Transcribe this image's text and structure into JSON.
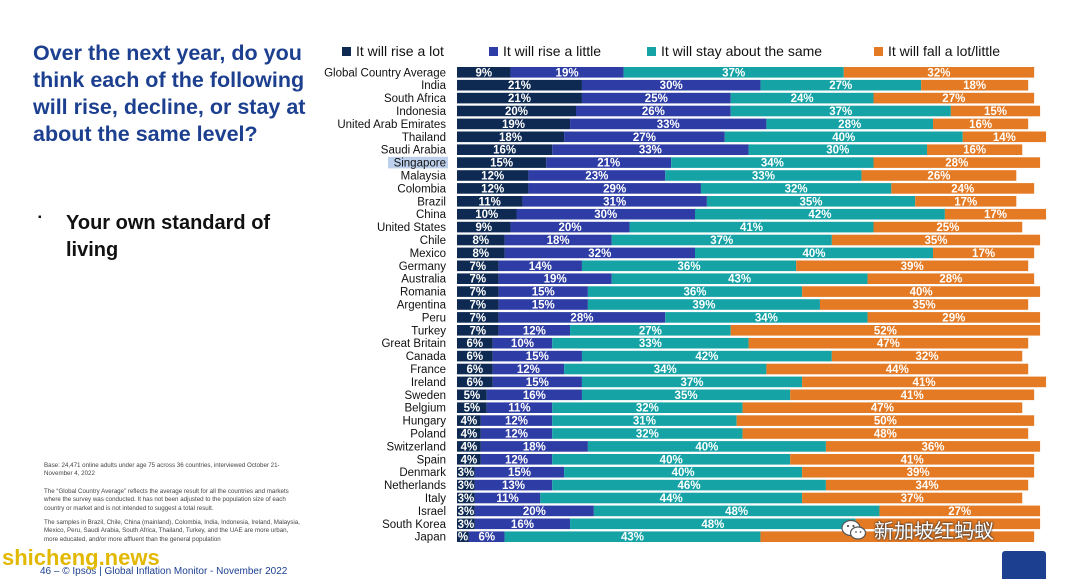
{
  "left_panel": {
    "question": "Over the next year, do you think each of the following will rise, decline, or stay at about the same level?",
    "bullet_text": "Your own standard of living",
    "notes": [
      "Base: 24,471 online adults under age 75 across 36 countries, interviewed October 21- November 4, 2022",
      "The “Global Country Average” reflects the average result for all the countries and markets where the survey was conducted. It has not been adjusted to the population size of each country or market and is not intended to suggest a total result.",
      "The samples in Brazil, Chile, China (mainland), Colombia, India, Indonesia, Ireland, Malaysia, Mexico, Peru, Saudi Arabia, South Africa, Thailand, Turkey, and the UAE are more urban, more educated, and/or more affluent than the general population"
    ]
  },
  "footer": {
    "text": "46 –   © Ipsos | Global Inflation Monitor - November 2022"
  },
  "watermarks": {
    "left": "shicheng.news",
    "right": "新加坡红蚂蚁"
  },
  "colors": {
    "rise_lot": "#0e2a52",
    "rise_little": "#2e3da5",
    "stay": "#16a3a6",
    "fall": "#e47a23",
    "title": "#1c3f8f"
  },
  "chart_data": {
    "type": "bar",
    "orientation": "horizontal",
    "stacked": true,
    "series": [
      {
        "name": "It will rise a lot",
        "color": "#0e2a52"
      },
      {
        "name": "It will rise a little",
        "color": "#2e3da5"
      },
      {
        "name": "It will stay about the same",
        "color": "#16a3a6"
      },
      {
        "name": "It will fall a lot/little",
        "color": "#e47a23"
      }
    ],
    "xlim": [
      0,
      100
    ],
    "highlight": "Singapore",
    "rows": [
      {
        "label": "Global Country Average",
        "v": [
          9,
          19,
          37,
          32
        ],
        "t": [
          "9%",
          "19%",
          "37%",
          "32%"
        ]
      },
      {
        "label": "India",
        "v": [
          21,
          30,
          27,
          18
        ],
        "t": [
          "21%",
          "30%",
          "27%",
          "18%"
        ]
      },
      {
        "label": "South Africa",
        "v": [
          21,
          25,
          24,
          27
        ],
        "t": [
          "21%",
          "25%",
          "24%",
          "27%"
        ]
      },
      {
        "label": "Indonesia",
        "v": [
          20,
          26,
          37,
          15
        ],
        "t": [
          "20%",
          "26%",
          "37%",
          "15%"
        ]
      },
      {
        "label": "United Arab Emirates",
        "v": [
          19,
          33,
          28,
          16
        ],
        "t": [
          "19%",
          "33%",
          "28%",
          "16%"
        ]
      },
      {
        "label": "Thailand",
        "v": [
          18,
          27,
          40,
          14
        ],
        "t": [
          "18%",
          "27%",
          "40%",
          "14%"
        ]
      },
      {
        "label": "Saudi Arabia",
        "v": [
          16,
          33,
          30,
          16
        ],
        "t": [
          "16%",
          "33%",
          "30%",
          "16%"
        ]
      },
      {
        "label": "Singapore",
        "v": [
          15,
          21,
          34,
          28
        ],
        "t": [
          "15%",
          "21%",
          "34%",
          "28%"
        ]
      },
      {
        "label": "Malaysia",
        "v": [
          12,
          23,
          33,
          26
        ],
        "t": [
          "12%",
          "23%",
          "33%",
          "26%"
        ]
      },
      {
        "label": "Colombia",
        "v": [
          12,
          29,
          32,
          24
        ],
        "t": [
          "12%",
          "29%",
          "32%",
          "24%"
        ]
      },
      {
        "label": "Brazil",
        "v": [
          11,
          31,
          35,
          17
        ],
        "t": [
          "11%",
          "31%",
          "35%",
          "17%"
        ]
      },
      {
        "label": "China",
        "v": [
          10,
          30,
          42,
          17
        ],
        "t": [
          "10%",
          "30%",
          "42%",
          "17%"
        ]
      },
      {
        "label": "United States",
        "v": [
          9,
          20,
          41,
          25
        ],
        "t": [
          "9%",
          "20%",
          "41%",
          "25%"
        ]
      },
      {
        "label": "Chile",
        "v": [
          8,
          18,
          37,
          35
        ],
        "t": [
          "8%",
          "18%",
          "37%",
          "35%"
        ]
      },
      {
        "label": "Mexico",
        "v": [
          8,
          32,
          40,
          17
        ],
        "t": [
          "8%",
          "32%",
          "40%",
          "17%"
        ]
      },
      {
        "label": "Germany",
        "v": [
          7,
          14,
          36,
          39
        ],
        "t": [
          "7%",
          "14%",
          "36%",
          "39%"
        ]
      },
      {
        "label": "Australia",
        "v": [
          7,
          19,
          43,
          28
        ],
        "t": [
          "7%",
          "19%",
          "43%",
          "28%"
        ]
      },
      {
        "label": "Romania",
        "v": [
          7,
          15,
          36,
          40
        ],
        "t": [
          "7%",
          "15%",
          "36%",
          "40%"
        ]
      },
      {
        "label": "Argentina",
        "v": [
          7,
          15,
          39,
          35
        ],
        "t": [
          "7%",
          "15%",
          "39%",
          "35%"
        ]
      },
      {
        "label": "Peru",
        "v": [
          7,
          28,
          34,
          29
        ],
        "t": [
          "7%",
          "28%",
          "34%",
          "29%"
        ]
      },
      {
        "label": "Turkey",
        "v": [
          7,
          12,
          27,
          52
        ],
        "t": [
          "7%",
          "12%",
          "27%",
          "52%"
        ]
      },
      {
        "label": "Great Britain",
        "v": [
          6,
          10,
          33,
          47
        ],
        "t": [
          "6%",
          "10%",
          "33%",
          "47%"
        ]
      },
      {
        "label": "Canada",
        "v": [
          6,
          15,
          42,
          32
        ],
        "t": [
          "6%",
          "15%",
          "42%",
          "32%"
        ]
      },
      {
        "label": "France",
        "v": [
          6,
          12,
          34,
          44
        ],
        "t": [
          "6%",
          "12%",
          "34%",
          "44%"
        ]
      },
      {
        "label": "Ireland",
        "v": [
          6,
          15,
          37,
          41
        ],
        "t": [
          "6%",
          "15%",
          "37%",
          "41%"
        ]
      },
      {
        "label": "Sweden",
        "v": [
          5,
          16,
          35,
          41
        ],
        "t": [
          "5%",
          "16%",
          "35%",
          "41%"
        ]
      },
      {
        "label": "Belgium",
        "v": [
          5,
          11,
          32,
          47
        ],
        "t": [
          "5%",
          "11%",
          "32%",
          "47%"
        ]
      },
      {
        "label": "Hungary",
        "v": [
          4,
          12,
          31,
          50
        ],
        "t": [
          "4%",
          "12%",
          "31%",
          "50%"
        ]
      },
      {
        "label": "Poland",
        "v": [
          4,
          12,
          32,
          48
        ],
        "t": [
          "4%",
          "12%",
          "32%",
          "48%"
        ]
      },
      {
        "label": "Switzerland",
        "v": [
          4,
          18,
          40,
          36
        ],
        "t": [
          "4%",
          "18%",
          "40%",
          "36%"
        ]
      },
      {
        "label": "Spain",
        "v": [
          4,
          12,
          40,
          41
        ],
        "t": [
          "4%",
          "12%",
          "40%",
          "41%"
        ]
      },
      {
        "label": "Denmark",
        "v": [
          3,
          15,
          40,
          39
        ],
        "t": [
          "3%",
          "15%",
          "40%",
          "39%"
        ]
      },
      {
        "label": "Netherlands",
        "v": [
          3,
          13,
          46,
          34
        ],
        "t": [
          "3%",
          "13%",
          "46%",
          "34%"
        ]
      },
      {
        "label": "Italy",
        "v": [
          3,
          11,
          44,
          37
        ],
        "t": [
          "3%",
          "11%",
          "44%",
          "37%"
        ]
      },
      {
        "label": "Israel",
        "v": [
          3,
          20,
          48,
          27
        ],
        "t": [
          "3%",
          "20%",
          "48%",
          "27%"
        ]
      },
      {
        "label": "South Korea",
        "v": [
          3,
          16,
          48,
          31
        ],
        "t": [
          "3%",
          "16%",
          "48%",
          ""
        ]
      },
      {
        "label": "Japan",
        "v": [
          2,
          6,
          43,
          46
        ],
        "t": [
          "%",
          "6%",
          "43%",
          ""
        ]
      }
    ]
  }
}
